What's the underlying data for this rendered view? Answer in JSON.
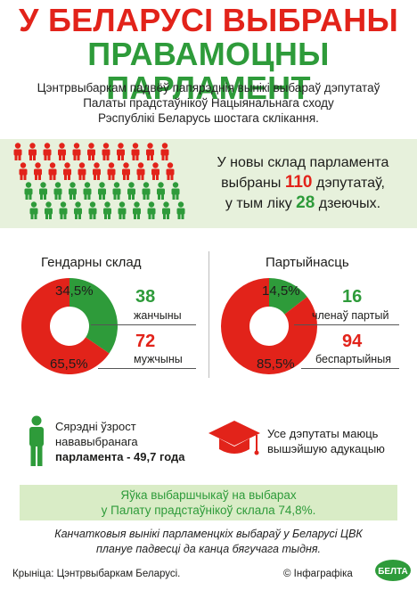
{
  "header": {
    "title_line1": "У БЕЛАРУСІ ВЫБРАНЫ",
    "title_line2": "ПРАВАМОЦНЫ ПАРЛАМЕНТ"
  },
  "intro": {
    "line1": "Цэнтрвыбаркам падвёў папярэднія вынікі выбараў дэпутатаў",
    "line2": "Палаты прадстаўнікоў Нацыянальнага сходу",
    "line3": "Рэспублікі Беларусь шостага склікання."
  },
  "composition": {
    "line1": "У новы склад парламента",
    "line2_pre": "выбраны",
    "total": "110",
    "line2_post": "дэпутатаў,",
    "line3_pre": "у тым ліку",
    "incumbents": "28",
    "line3_post": "дзеючых.",
    "icon_total": 110,
    "icon_incumbents": 28,
    "colors": {
      "red": "#e2231a",
      "green": "#2e9b3a"
    }
  },
  "gender": {
    "title": "Гендарны склад",
    "women_pct": "34,5%",
    "women_count": "38",
    "women_label": "жанчыны",
    "men_pct": "65,5%",
    "men_count": "72",
    "men_label": "мужчыны"
  },
  "party": {
    "title": "Партыйнасць",
    "members_pct": "14,5%",
    "members_count": "16",
    "members_label": "членаў партый",
    "nonpartisan_pct": "85,5%",
    "nonpartisan_count": "94",
    "nonpartisan_label": "беспартыйныя"
  },
  "chart_data": [
    {
      "type": "pie",
      "title": "Гендарны склад",
      "categories": [
        "жанчыны",
        "мужчыны"
      ],
      "values": [
        38,
        72
      ],
      "percent": [
        34.5,
        65.5
      ],
      "colors": [
        "#2e9b3a",
        "#e2231a"
      ]
    },
    {
      "type": "pie",
      "title": "Партыйнасць",
      "categories": [
        "членаў партый",
        "беспартыйныя"
      ],
      "values": [
        16,
        94
      ],
      "percent": [
        14.5,
        85.5
      ],
      "colors": [
        "#2e9b3a",
        "#e2231a"
      ]
    }
  ],
  "age": {
    "line1": "Сярэдні ўзрост",
    "line2": "нававыбранага",
    "line3": "парламента - 49,7 года"
  },
  "education": {
    "line1": "Усе дэпутаты маюць",
    "line2": "вышэйшую адукацыю"
  },
  "turnout": {
    "line1": "Яўка выбаршчыкаў на выбарах",
    "line2": "у Палату прадстаўнікоў склала 74,8%."
  },
  "final_note": {
    "line1": "Канчатковыя вынікі парламенцкіх выбараў у Беларусі ЦВК",
    "line2": "плануе падвесці да канца бягучага тыдня."
  },
  "footer": {
    "source": "Крыніца: Цэнтрвыбаркам Беларусі.",
    "credit": "© Інфаграфіка",
    "logo_text": "БЕЛТА"
  }
}
